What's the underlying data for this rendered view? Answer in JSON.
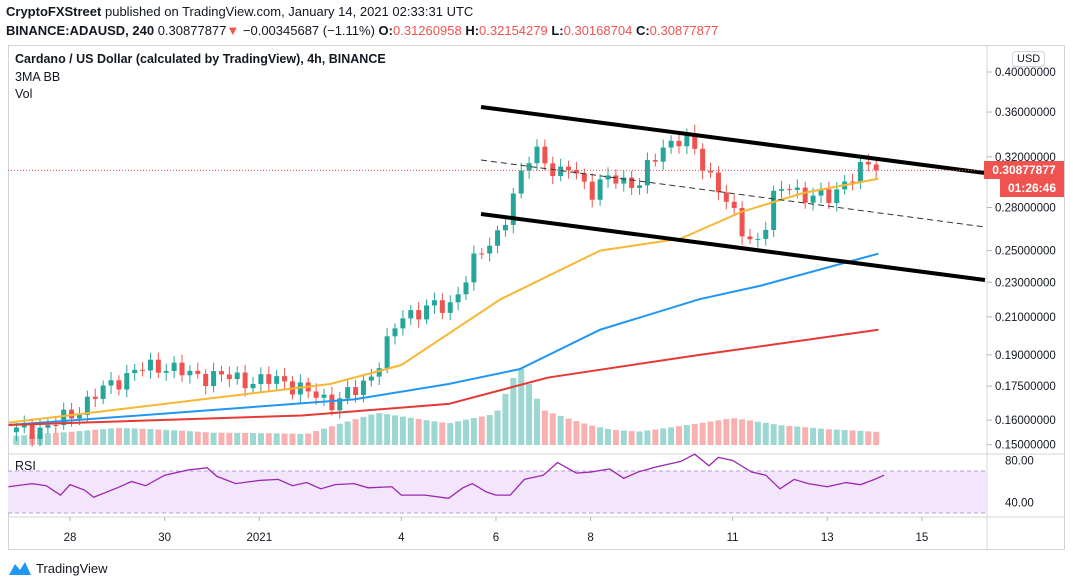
{
  "header": {
    "publisher": "CryptoFXStreet",
    "published_text": "published on TradingView.com, January 14, 2021 02:33:31 UTC",
    "symbol": "BINANCE:ADAUSD, 240",
    "last": "0.30877877",
    "change": "−0.00345687 (−1.11%)",
    "o_label": "O:",
    "o": "0.31260958",
    "h_label": "H:",
    "h": "0.32154279",
    "l_label": "L:",
    "l": "0.30168704",
    "c_label": "C:",
    "c": "0.30877877"
  },
  "legend": {
    "title": "Cardano / US Dollar (calculated by TradingView), 4h, BINANCE",
    "ind1": "3MA BB",
    "ind2": "Vol",
    "rsi": "RSI"
  },
  "axis": {
    "currency": "USD",
    "price_label": "0.30877877",
    "countdown": "01:26:46"
  },
  "footer": {
    "brand": "TradingView"
  },
  "colors": {
    "up": "#26a69a",
    "down": "#ef5350",
    "ma50": "#f7b733",
    "ma100": "#2196f3",
    "ma200": "#e53935",
    "rsi": "#9c27b0"
  },
  "chart_data": {
    "type": "candlestick",
    "title": "Cardano / US Dollar, 4h",
    "y_scale": "log",
    "y_ticks": [
      0.4,
      0.36,
      0.32,
      0.28,
      0.25,
      0.23,
      0.21,
      0.19,
      0.175,
      0.16,
      0.15
    ],
    "y_tick_labels": [
      "0.40000000",
      "0.36000000",
      "0.32000000",
      "0.28000000",
      "0.25000000",
      "0.23000000",
      "0.21000000",
      "0.19000000",
      "0.17500000",
      "0.16000000",
      "0.15000000"
    ],
    "x_ticks": [
      {
        "day": 0,
        "label": "28"
      },
      {
        "day": 2,
        "label": "30"
      },
      {
        "day": 4,
        "label": "2021"
      },
      {
        "day": 7,
        "label": "4"
      },
      {
        "day": 9,
        "label": "6"
      },
      {
        "day": 11,
        "label": "8"
      },
      {
        "day": 14,
        "label": "11"
      },
      {
        "day": 16,
        "label": "13"
      },
      {
        "day": 18,
        "label": "15"
      }
    ],
    "x_unit": "days since Dec 28 2020",
    "close_path": [
      [
        -1.3,
        0.155
      ],
      [
        -0.5,
        0.157
      ],
      [
        0,
        0.162
      ],
      [
        0.5,
        0.17
      ],
      [
        1,
        0.178
      ],
      [
        1.5,
        0.183
      ],
      [
        2,
        0.185
      ],
      [
        2.5,
        0.18
      ],
      [
        3,
        0.18
      ],
      [
        4,
        0.177
      ],
      [
        4.5,
        0.178
      ],
      [
        5,
        0.172
      ],
      [
        5.5,
        0.168
      ],
      [
        6,
        0.172
      ],
      [
        6.3,
        0.178
      ],
      [
        6.6,
        0.19
      ],
      [
        7,
        0.21
      ],
      [
        7.5,
        0.215
      ],
      [
        8,
        0.215
      ],
      [
        8.3,
        0.23
      ],
      [
        8.6,
        0.245
      ],
      [
        9,
        0.26
      ],
      [
        9.3,
        0.28
      ],
      [
        9.6,
        0.31
      ],
      [
        9.8,
        0.33
      ],
      [
        10,
        0.32
      ],
      [
        10.3,
        0.3
      ],
      [
        10.6,
        0.315
      ],
      [
        11,
        0.29
      ],
      [
        11.5,
        0.305
      ],
      [
        12,
        0.295
      ],
      [
        12.5,
        0.33
      ],
      [
        13,
        0.335
      ],
      [
        13.3,
        0.32
      ],
      [
        13.6,
        0.3
      ],
      [
        14,
        0.275
      ],
      [
        14.3,
        0.26
      ],
      [
        14.6,
        0.255
      ],
      [
        14.9,
        0.29
      ],
      [
        15.2,
        0.3
      ],
      [
        15.5,
        0.285
      ],
      [
        16,
        0.29
      ],
      [
        16.5,
        0.3
      ],
      [
        16.9,
        0.318
      ],
      [
        17.08,
        0.3088
      ]
    ],
    "ma50": [
      [
        -1.3,
        0.159
      ],
      [
        5.5,
        0.176
      ],
      [
        7,
        0.185
      ],
      [
        9.1,
        0.22
      ],
      [
        11.2,
        0.25
      ],
      [
        12.9,
        0.258
      ],
      [
        14.2,
        0.277
      ],
      [
        15.5,
        0.291
      ],
      [
        17.08,
        0.302
      ]
    ],
    "ma100": [
      [
        -1.3,
        0.158
      ],
      [
        2.8,
        0.164
      ],
      [
        6,
        0.169
      ],
      [
        8,
        0.176
      ],
      [
        9.5,
        0.183
      ],
      [
        11.2,
        0.203
      ],
      [
        13.3,
        0.22
      ],
      [
        14.6,
        0.228
      ],
      [
        17.08,
        0.248
      ]
    ],
    "ma200": [
      [
        -1.3,
        0.158
      ],
      [
        4.9,
        0.162
      ],
      [
        8,
        0.167
      ],
      [
        10.1,
        0.179
      ],
      [
        13.3,
        0.19
      ],
      [
        17.08,
        0.203
      ]
    ],
    "volume_path": [
      [
        -1.3,
        15
      ],
      [
        1,
        20
      ],
      [
        3,
        12
      ],
      [
        5,
        10
      ],
      [
        6.5,
        30
      ],
      [
        8,
        22
      ],
      [
        9,
        35
      ],
      [
        9.5,
        95
      ],
      [
        10,
        45
      ],
      [
        11,
        30
      ],
      [
        12,
        20
      ],
      [
        13,
        25
      ],
      [
        14,
        30
      ],
      [
        15,
        20
      ],
      [
        16,
        15
      ],
      [
        17.08,
        12
      ]
    ],
    "rsi_ticks": [
      80,
      40
    ],
    "rsi_bands": [
      70,
      30
    ],
    "rsi_path": [
      [
        -1.3,
        55
      ],
      [
        -0.8,
        58
      ],
      [
        -0.5,
        56
      ],
      [
        -0.2,
        47
      ],
      [
        0,
        57
      ],
      [
        0.3,
        52
      ],
      [
        0.5,
        45
      ],
      [
        1,
        54
      ],
      [
        1.3,
        60
      ],
      [
        1.6,
        56
      ],
      [
        2,
        66
      ],
      [
        2.5,
        71
      ],
      [
        2.9,
        73
      ],
      [
        3.1,
        65
      ],
      [
        3.5,
        58
      ],
      [
        4,
        61
      ],
      [
        4.4,
        62
      ],
      [
        4.7,
        56
      ],
      [
        5,
        59
      ],
      [
        5.3,
        53
      ],
      [
        5.6,
        57
      ],
      [
        6,
        58
      ],
      [
        6.3,
        54
      ],
      [
        6.8,
        55
      ],
      [
        7,
        47
      ],
      [
        7.5,
        47
      ],
      [
        8,
        44
      ],
      [
        8.3,
        54
      ],
      [
        8.5,
        58
      ],
      [
        8.8,
        50
      ],
      [
        9,
        47
      ],
      [
        9.3,
        47
      ],
      [
        9.6,
        62
      ],
      [
        10,
        66
      ],
      [
        10.3,
        78
      ],
      [
        10.7,
        68
      ],
      [
        11,
        69
      ],
      [
        11.4,
        72
      ],
      [
        11.7,
        63
      ],
      [
        12,
        69
      ],
      [
        12.4,
        74
      ],
      [
        12.9,
        79
      ],
      [
        13.2,
        86
      ],
      [
        13.5,
        75
      ],
      [
        13.7,
        83
      ],
      [
        14,
        80
      ],
      [
        14.4,
        69
      ],
      [
        14.7,
        66
      ],
      [
        15,
        53
      ],
      [
        15.3,
        62
      ],
      [
        15.6,
        58
      ],
      [
        16,
        55
      ],
      [
        16.4,
        59
      ],
      [
        16.7,
        57
      ],
      [
        17,
        62
      ],
      [
        17.2,
        66
      ],
      [
        17.5,
        64
      ],
      [
        17.8,
        59
      ],
      [
        18,
        52
      ]
    ]
  }
}
